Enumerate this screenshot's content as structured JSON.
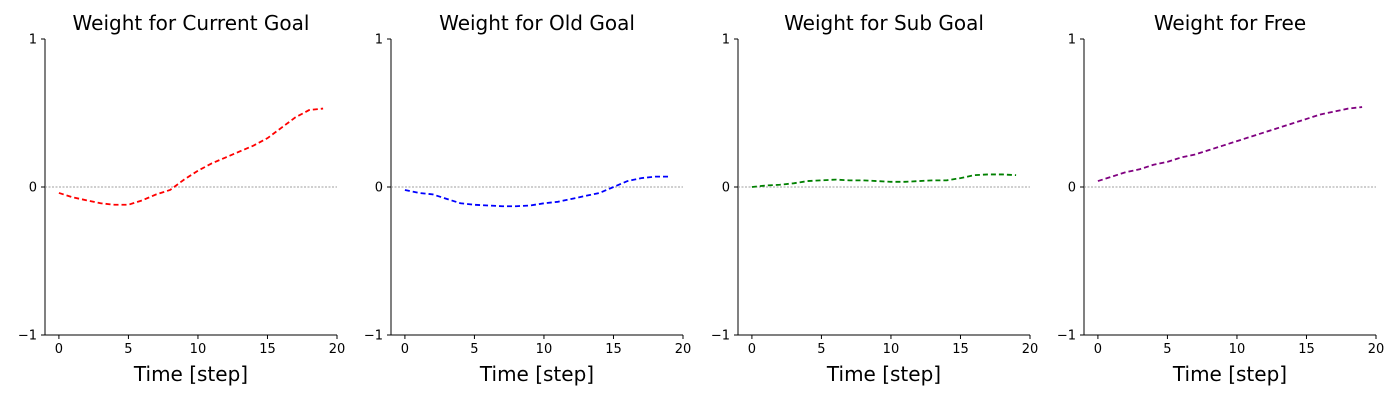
{
  "chart_data": [
    {
      "type": "line",
      "title": "Weight for Current Goal",
      "xlabel": "Time [step]",
      "ylabel": "",
      "xlim": [
        -1,
        20
      ],
      "ylim": [
        -1,
        1
      ],
      "xticks": [
        0,
        5,
        10,
        15,
        20
      ],
      "yticks": [
        -1,
        0,
        1
      ],
      "grid": false,
      "zero_line": true,
      "series": [
        {
          "color": "#ff0000",
          "x": [
            0,
            1,
            2,
            3,
            4,
            5,
            6,
            7,
            8,
            9,
            10,
            11,
            12,
            13,
            14,
            15,
            16,
            17,
            18,
            19
          ],
          "y": [
            -0.04,
            -0.07,
            -0.09,
            -0.11,
            -0.12,
            -0.12,
            -0.09,
            -0.05,
            -0.02,
            0.05,
            0.11,
            0.16,
            0.2,
            0.24,
            0.28,
            0.33,
            0.4,
            0.47,
            0.52,
            0.53
          ]
        }
      ]
    },
    {
      "type": "line",
      "title": "Weight for Old Goal",
      "xlabel": "Time [step]",
      "ylabel": "",
      "xlim": [
        -1,
        20
      ],
      "ylim": [
        -1,
        1
      ],
      "xticks": [
        0,
        5,
        10,
        15,
        20
      ],
      "yticks": [
        -1,
        0,
        1
      ],
      "grid": false,
      "zero_line": true,
      "series": [
        {
          "color": "#0000ff",
          "x": [
            0,
            1,
            2,
            3,
            4,
            5,
            6,
            7,
            8,
            9,
            10,
            11,
            12,
            13,
            14,
            15,
            16,
            17,
            18,
            19
          ],
          "y": [
            -0.02,
            -0.04,
            -0.05,
            -0.08,
            -0.11,
            -0.12,
            -0.125,
            -0.13,
            -0.13,
            -0.125,
            -0.11,
            -0.1,
            -0.08,
            -0.06,
            -0.04,
            0.0,
            0.04,
            0.06,
            0.07,
            0.07
          ]
        }
      ]
    },
    {
      "type": "line",
      "title": "Weight for Sub Goal",
      "xlabel": "Time [step]",
      "ylabel": "",
      "xlim": [
        -1,
        20
      ],
      "ylim": [
        -1,
        1
      ],
      "xticks": [
        0,
        5,
        10,
        15,
        20
      ],
      "yticks": [
        -1,
        0,
        1
      ],
      "grid": false,
      "zero_line": true,
      "series": [
        {
          "color": "#008000",
          "x": [
            0,
            1,
            2,
            3,
            4,
            5,
            6,
            7,
            8,
            9,
            10,
            11,
            12,
            13,
            14,
            15,
            16,
            17,
            18,
            19
          ],
          "y": [
            0.0,
            0.01,
            0.015,
            0.025,
            0.04,
            0.045,
            0.05,
            0.045,
            0.045,
            0.04,
            0.035,
            0.035,
            0.04,
            0.045,
            0.045,
            0.06,
            0.08,
            0.085,
            0.085,
            0.08
          ]
        }
      ]
    },
    {
      "type": "line",
      "title": "Weight for Free",
      "xlabel": "Time [step]",
      "ylabel": "",
      "xlim": [
        -1,
        20
      ],
      "ylim": [
        -1,
        1
      ],
      "xticks": [
        0,
        5,
        10,
        15,
        20
      ],
      "yticks": [
        -1,
        0,
        1
      ],
      "grid": false,
      "zero_line": true,
      "series": [
        {
          "color": "#800080",
          "x": [
            0,
            1,
            2,
            3,
            4,
            5,
            6,
            7,
            8,
            9,
            10,
            11,
            12,
            13,
            14,
            15,
            16,
            17,
            18,
            19
          ],
          "y": [
            0.04,
            0.07,
            0.1,
            0.12,
            0.15,
            0.17,
            0.2,
            0.22,
            0.25,
            0.28,
            0.31,
            0.34,
            0.37,
            0.4,
            0.43,
            0.46,
            0.49,
            0.51,
            0.53,
            0.54
          ]
        }
      ]
    }
  ]
}
